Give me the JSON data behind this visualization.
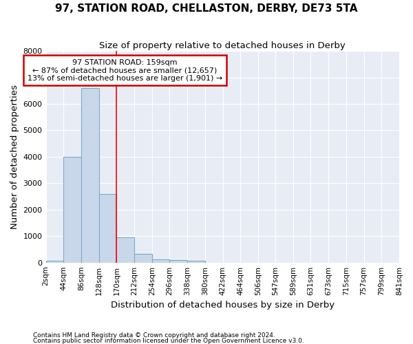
{
  "title": "97, STATION ROAD, CHELLASTON, DERBY, DE73 5TA",
  "subtitle": "Size of property relative to detached houses in Derby",
  "xlabel": "Distribution of detached houses by size in Derby",
  "ylabel": "Number of detached properties",
  "footnote1": "Contains HM Land Registry data © Crown copyright and database right 2024.",
  "footnote2": "Contains public sector information licensed under the Open Government Licence v3.0.",
  "bin_edges": [
    2,
    44,
    86,
    128,
    170,
    212,
    254,
    296,
    338,
    380,
    422,
    464,
    506,
    547,
    589,
    631,
    673,
    715,
    757,
    799,
    841
  ],
  "bar_heights": [
    80,
    4000,
    6600,
    2600,
    950,
    320,
    120,
    100,
    70,
    0,
    0,
    0,
    0,
    0,
    0,
    0,
    0,
    0,
    0,
    0
  ],
  "bar_color": "#c8d8ea",
  "bar_edge_color": "#7aaac8",
  "bar_edge_width": 0.8,
  "red_line_x": 170,
  "ylim": [
    0,
    8000
  ],
  "annotation_line1": "97 STATION ROAD: 159sqm",
  "annotation_line2": "← 87% of detached houses are smaller (12,657)",
  "annotation_line3": "13% of semi-detached houses are larger (1,901) →",
  "annotation_box_color": "#ffffff",
  "annotation_box_edge_color": "#cc0000",
  "bg_color": "#e8edf5",
  "grid_color": "#ffffff",
  "fig_bg_color": "#ffffff",
  "title_fontsize": 11,
  "subtitle_fontsize": 9.5,
  "axis_label_fontsize": 9.5,
  "tick_fontsize": 7.5
}
